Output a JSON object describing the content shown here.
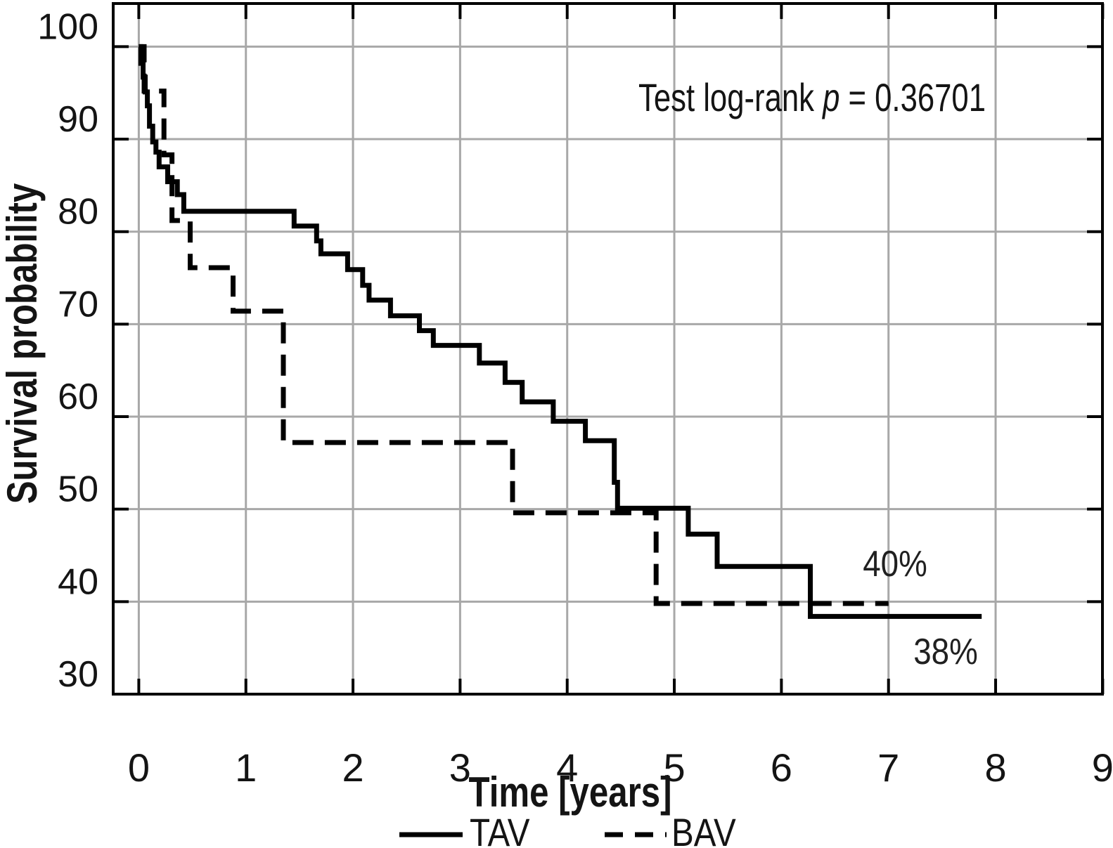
{
  "chart_data": {
    "type": "line",
    "subtype": "kaplan-meier-step",
    "title": "",
    "xlabel": "Time [years]",
    "ylabel": "Survival probability",
    "xlim": [
      -0.24,
      9.0
    ],
    "ylim": [
      30,
      104.7
    ],
    "grid": true,
    "x_ticks": [
      0,
      1,
      2,
      3,
      4,
      5,
      6,
      7,
      8,
      9
    ],
    "y_ticks": [
      100,
      90,
      80,
      70,
      60,
      50,
      40,
      30
    ],
    "annotation": {
      "prefix": "Test log-rank ",
      "p_symbol": "p",
      "rest": " = 0.36701"
    },
    "series": [
      {
        "name": "TAV",
        "style": "solid",
        "color": "#000000",
        "final_value_label": "38%",
        "points": [
          [
            0,
            100
          ],
          [
            0.02,
            98.2
          ],
          [
            0.04,
            96.7
          ],
          [
            0.06,
            95.1
          ],
          [
            0.08,
            93.6
          ],
          [
            0.1,
            91.4
          ],
          [
            0.13,
            89.7
          ],
          [
            0.16,
            88.6
          ],
          [
            0.19,
            87.0
          ],
          [
            0.27,
            85.4
          ],
          [
            0.36,
            84.0
          ],
          [
            0.42,
            82.2
          ],
          [
            1.45,
            80.6
          ],
          [
            1.66,
            79.0
          ],
          [
            1.7,
            77.6
          ],
          [
            1.95,
            75.9
          ],
          [
            2.09,
            74.2
          ],
          [
            2.15,
            72.6
          ],
          [
            2.35,
            70.9
          ],
          [
            2.62,
            69.3
          ],
          [
            2.75,
            67.7
          ],
          [
            3.18,
            65.8
          ],
          [
            3.42,
            63.7
          ],
          [
            3.58,
            61.6
          ],
          [
            3.87,
            59.5
          ],
          [
            4.17,
            57.4
          ],
          [
            4.44,
            52.9
          ],
          [
            4.47,
            50.1
          ],
          [
            5.13,
            47.3
          ],
          [
            5.4,
            43.8
          ],
          [
            6.27,
            38.4
          ],
          [
            7.87,
            38.4
          ]
        ]
      },
      {
        "name": "BAV",
        "style": "dashed",
        "color": "#000000",
        "final_value_label": "40%",
        "points": [
          [
            0,
            100
          ],
          [
            0.05,
            95.2
          ],
          [
            0.235,
            88.3
          ],
          [
            0.31,
            81.2
          ],
          [
            0.48,
            76.1
          ],
          [
            0.88,
            71.4
          ],
          [
            1.35,
            57.2
          ],
          [
            3.49,
            49.6
          ],
          [
            4.83,
            39.8
          ],
          [
            7.0,
            39.8
          ]
        ]
      }
    ],
    "end_labels": [
      {
        "text": "40%",
        "t": 7.06,
        "v": 44.2
      },
      {
        "text": "38%",
        "t": 7.53,
        "v": 34.7
      }
    ],
    "legend": {
      "position": "bottom",
      "entries": [
        "TAV",
        "BAV"
      ]
    },
    "colors": {
      "curve": "#000000",
      "gridline": "#a8a8a8",
      "frame": "#000000"
    }
  }
}
